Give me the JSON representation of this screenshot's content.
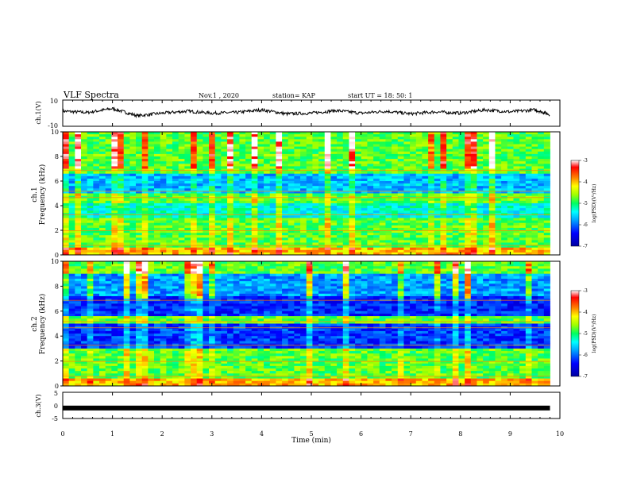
{
  "header": {
    "title": "VLF Spectra",
    "date": "Nov.1  , 2020",
    "station": "station= KAP",
    "start": "start  UT =   18: 50: 1"
  },
  "colors": {
    "axis": "#000000",
    "colormap": [
      "#0000a0",
      "#0000ff",
      "#00a0ff",
      "#00ffff",
      "#00ff60",
      "#a0ff00",
      "#ffff00",
      "#ff8000",
      "#ff0000",
      "#ffffff"
    ]
  },
  "chart_data": [
    {
      "type": "line",
      "ylabel": "ch.1(V)",
      "ylim": [
        -10,
        10
      ],
      "y_ticks": [
        "10",
        "-10"
      ],
      "xlim": [
        0,
        10
      ],
      "note": "waveform amplitude trace, roughly -2 to 3 V, ends near 9.8 min",
      "x": [
        0,
        0.5,
        1,
        1.5,
        2,
        2.5,
        3,
        3.5,
        4,
        4.5,
        5,
        5.5,
        6,
        6.5,
        7,
        7.5,
        8,
        8.5,
        9,
        9.5,
        9.8
      ],
      "y": [
        1.5,
        0.5,
        3.5,
        -2,
        0,
        1.5,
        0,
        0.5,
        2.5,
        -0.5,
        0,
        2,
        0,
        1.5,
        -0.5,
        1,
        0,
        2.5,
        1,
        2.5,
        -1
      ]
    },
    {
      "type": "heatmap",
      "ylabel": "ch.1",
      "ylabel2": "Frequency  (kHz)",
      "ylim": [
        0,
        10
      ],
      "y_ticks": [
        "0",
        "2",
        "4",
        "6",
        "8",
        "10"
      ],
      "xlim": [
        0,
        10
      ],
      "colorbar": {
        "label": "log(PSD)(V²/Hz)",
        "range": [
          -7,
          -3
        ],
        "ticks": [
          "-3",
          "-4",
          "-5",
          "-6",
          "-7"
        ]
      }
    },
    {
      "type": "heatmap",
      "ylabel": "ch.2",
      "ylabel2": "Frequency  (kHz)",
      "ylim": [
        0,
        10
      ],
      "y_ticks": [
        "0",
        "2",
        "4",
        "6",
        "8",
        "10"
      ],
      "xlim": [
        0,
        10
      ],
      "colorbar": {
        "label": "log(PSD)(V²/Hz)",
        "range": [
          -7,
          -3
        ],
        "ticks": [
          "-3",
          "-4",
          "-5",
          "-6",
          "-7"
        ]
      }
    },
    {
      "type": "line",
      "ylabel": "ch.3(V)",
      "ylim": [
        -5,
        5
      ],
      "y_ticks": [
        "5",
        "0",
        "-5"
      ],
      "xlim": [
        0,
        10
      ],
      "xlabel": "Time  (min)",
      "x_ticks": [
        "0",
        "1",
        "2",
        "3",
        "4",
        "5",
        "6",
        "7",
        "8",
        "9",
        "10"
      ],
      "note": "constant level near -1 V shown as a thick bar",
      "x": [
        0,
        9.8
      ],
      "y": [
        -1,
        -1
      ]
    }
  ]
}
